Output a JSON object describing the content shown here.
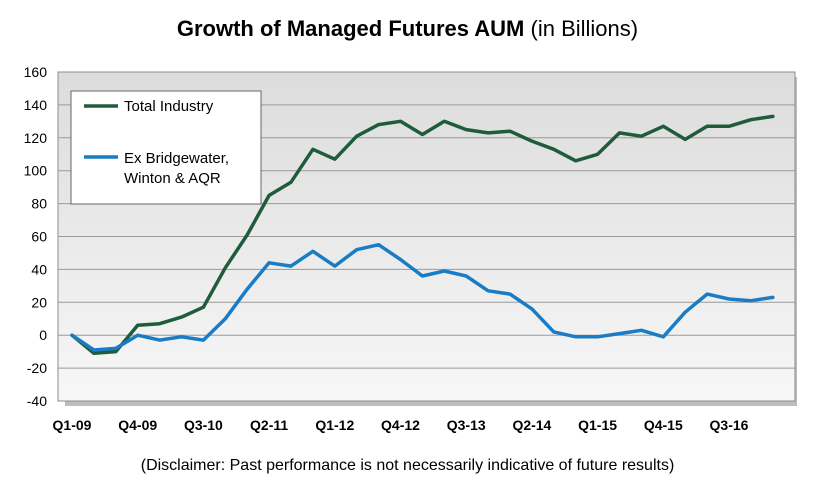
{
  "chart_data": {
    "type": "line",
    "title": "Growth of Managed Futures AUM",
    "subtitle": "(in Billions)",
    "xlabel": "",
    "ylabel": "",
    "ylim": [
      -40,
      160
    ],
    "yticks": [
      160,
      140,
      120,
      100,
      80,
      60,
      40,
      20,
      0,
      -20,
      -40
    ],
    "x_tick_labels": [
      "Q1-09",
      "Q4-09",
      "Q3-10",
      "Q2-11",
      "Q1-12",
      "Q4-12",
      "Q3-13",
      "Q2-14",
      "Q1-15",
      "Q4-15",
      "Q3-16"
    ],
    "x": [
      "Q1-09",
      "Q2-09",
      "Q3-09",
      "Q4-09",
      "Q1-10",
      "Q2-10",
      "Q3-10",
      "Q4-10",
      "Q1-11",
      "Q2-11",
      "Q3-11",
      "Q4-11",
      "Q1-12",
      "Q2-12",
      "Q3-12",
      "Q4-12",
      "Q1-13",
      "Q2-13",
      "Q3-13",
      "Q4-13",
      "Q1-14",
      "Q2-14",
      "Q3-14",
      "Q4-14",
      "Q1-15",
      "Q2-15",
      "Q3-15",
      "Q4-15",
      "Q1-16",
      "Q2-16",
      "Q3-16",
      "Q4-16",
      "Q1-17"
    ],
    "series": [
      {
        "name": "Total Industry",
        "color": "#1e5c3c",
        "values": [
          0,
          -11,
          -10,
          6,
          7,
          11,
          17,
          41,
          61,
          85,
          93,
          113,
          107,
          121,
          128,
          130,
          122,
          130,
          125,
          123,
          124,
          118,
          113,
          106,
          110,
          123,
          121,
          127,
          119,
          127,
          127,
          131,
          133
        ]
      },
      {
        "name": "Ex Bridgewater,\nWinton & AQR",
        "color": "#1a7cc4",
        "values": [
          0,
          -9,
          -8,
          0,
          -3,
          -1,
          -3,
          10,
          28,
          44,
          42,
          51,
          42,
          52,
          55,
          46,
          36,
          39,
          36,
          27,
          25,
          16,
          2,
          -1,
          -1,
          1,
          3,
          -1,
          14,
          25,
          22,
          21,
          23
        ]
      }
    ],
    "grid": "horizontal",
    "legend_position": "top-left"
  },
  "disclaimer": "(Disclaimer: Past performance is not necessarily indicative of future results)"
}
